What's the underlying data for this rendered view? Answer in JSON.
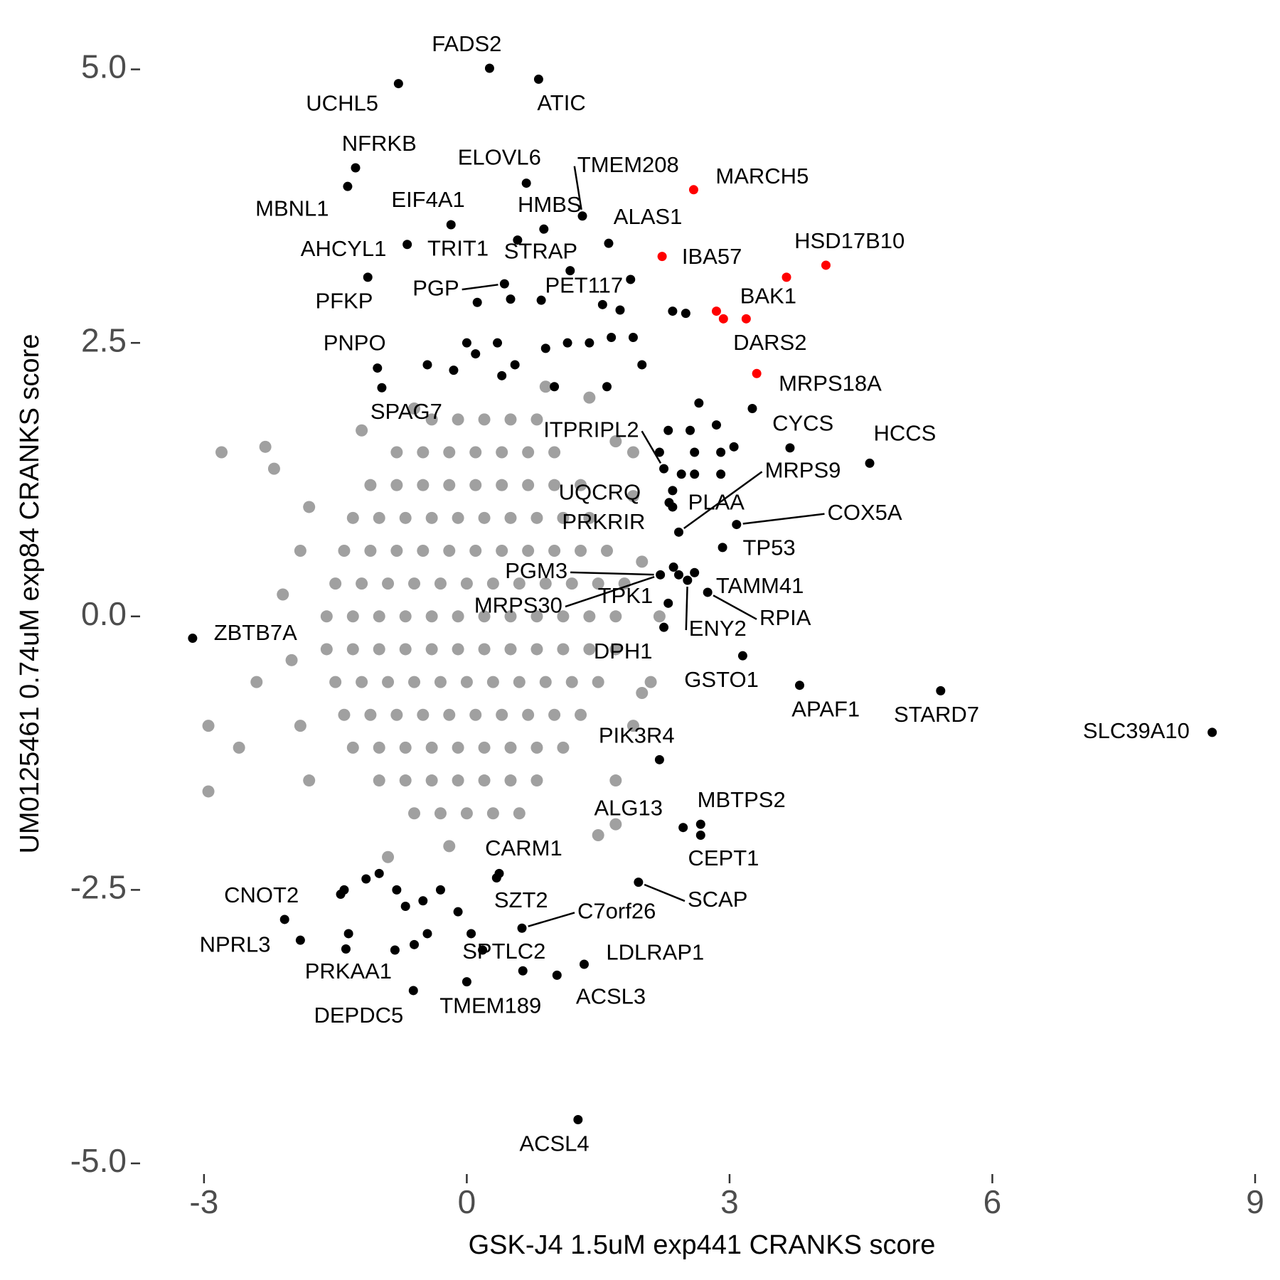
{
  "chart_data": {
    "type": "scatter",
    "xlabel": "GSK-J4 1.5uM exp441 CRANKS score",
    "ylabel": "UM0125461 0.74uM exp84 CRANKS score",
    "xlim": [
      -3.5,
      9.0
    ],
    "ylim": [
      -5.1,
      5.2
    ],
    "xticks": [
      -3,
      0,
      3,
      6,
      9
    ],
    "yticks": [
      {
        "value": -5,
        "label": "-5.0"
      },
      {
        "value": -2.5,
        "label": "-2.5"
      },
      {
        "value": 0,
        "label": "0.0"
      },
      {
        "value": 2.5,
        "label": "2.5"
      },
      {
        "value": 5,
        "label": "5.0"
      }
    ],
    "grid": false,
    "series": [
      {
        "color": "#a0a0a0",
        "x": [
          -0.4,
          -0.1,
          0.2,
          0.5,
          0.8,
          -0.8,
          -0.5,
          -0.2,
          0.1,
          0.4,
          0.7,
          1.0,
          -1.1,
          -0.8,
          -0.5,
          -0.2,
          0.1,
          0.4,
          0.7,
          1.0,
          1.3,
          -1.3,
          -1.0,
          -0.7,
          -0.4,
          -0.1,
          0.2,
          0.5,
          0.8,
          1.1,
          1.4,
          -1.4,
          -1.1,
          -0.8,
          -0.5,
          -0.2,
          0.1,
          0.4,
          0.7,
          1.0,
          1.3,
          1.6,
          -1.5,
          -1.2,
          -0.9,
          -0.6,
          -0.3,
          0,
          0.3,
          0.6,
          0.9,
          1.2,
          1.5,
          1.8,
          -1.6,
          -1.3,
          -1.0,
          -0.7,
          -0.4,
          -0.1,
          0.2,
          0.5,
          0.8,
          1.1,
          1.4,
          1.7,
          -1.6,
          -1.3,
          -1.0,
          -0.7,
          -0.4,
          -0.1,
          0.2,
          0.5,
          0.8,
          1.1,
          1.4,
          1.7,
          -1.5,
          -1.2,
          -0.9,
          -0.6,
          -0.3,
          0,
          0.3,
          0.6,
          0.9,
          1.2,
          1.5,
          -1.4,
          -1.1,
          -0.8,
          -0.5,
          -0.2,
          0.1,
          0.4,
          0.7,
          1.0,
          1.3,
          -1.3,
          -1.0,
          -0.7,
          -0.4,
          -0.1,
          0.2,
          0.5,
          0.8,
          1.1,
          -1.0,
          -0.7,
          -0.4,
          -0.1,
          0.2,
          0.5,
          0.8,
          -0.6,
          -0.3,
          0,
          0.3,
          0.6,
          -2.8,
          -2.3,
          -2.2,
          -2.95,
          -2.95,
          -2.4,
          -2.6,
          -1.9,
          -2.1,
          -2.0,
          -1.9,
          -1.8,
          -1.2,
          -0.9,
          -0.2,
          1.7,
          1.7,
          1.9,
          2.1,
          2.2,
          2.0,
          1.9,
          1.7,
          1.4,
          0.9,
          -0.6,
          -1.8,
          1.5,
          2.0,
          1.9
        ],
        "y": [
          1.8,
          1.8,
          1.8,
          1.8,
          1.8,
          1.5,
          1.5,
          1.5,
          1.5,
          1.5,
          1.5,
          1.5,
          1.2,
          1.2,
          1.2,
          1.2,
          1.2,
          1.2,
          1.2,
          1.2,
          1.2,
          0.9,
          0.9,
          0.9,
          0.9,
          0.9,
          0.9,
          0.9,
          0.9,
          0.9,
          0.9,
          0.6,
          0.6,
          0.6,
          0.6,
          0.6,
          0.6,
          0.6,
          0.6,
          0.6,
          0.6,
          0.6,
          0.3,
          0.3,
          0.3,
          0.3,
          0.3,
          0.3,
          0.3,
          0.3,
          0.3,
          0.3,
          0.3,
          0.3,
          0,
          0,
          0,
          0,
          0,
          0,
          0,
          0,
          0,
          0,
          0,
          0,
          -0.3,
          -0.3,
          -0.3,
          -0.3,
          -0.3,
          -0.3,
          -0.3,
          -0.3,
          -0.3,
          -0.3,
          -0.3,
          -0.3,
          -0.6,
          -0.6,
          -0.6,
          -0.6,
          -0.6,
          -0.6,
          -0.6,
          -0.6,
          -0.6,
          -0.6,
          -0.6,
          -0.9,
          -0.9,
          -0.9,
          -0.9,
          -0.9,
          -0.9,
          -0.9,
          -0.9,
          -0.9,
          -0.9,
          -1.2,
          -1.2,
          -1.2,
          -1.2,
          -1.2,
          -1.2,
          -1.2,
          -1.2,
          -1.2,
          -1.5,
          -1.5,
          -1.5,
          -1.5,
          -1.5,
          -1.5,
          -1.5,
          -1.8,
          -1.8,
          -1.8,
          -1.8,
          -1.8,
          1.5,
          1.55,
          1.35,
          -1.0,
          -1.6,
          -0.6,
          -1.2,
          0.6,
          0.2,
          -0.4,
          -1.0,
          1.0,
          1.7,
          -2.2,
          -2.1,
          -1.9,
          -1.5,
          -1.0,
          -0.6,
          0.0,
          0.5,
          1.1,
          1.6,
          2.0,
          2.1,
          1.9,
          -1.5,
          -2.0,
          -0.7,
          1.5
        ]
      },
      {
        "color": "#000000",
        "x": [
          0.26,
          -0.78,
          0.82,
          -1.27,
          -1.36,
          0.68,
          1.32,
          0.88,
          -0.18,
          1.62,
          -0.68,
          0.58,
          1.18,
          -1.13,
          0.43,
          1.87,
          -1.02,
          -0.97,
          3.26,
          4.6,
          3.69,
          2.25,
          2.42,
          2.31,
          3.08,
          2.92,
          2.21,
          2.75,
          2.36,
          -3.13,
          2.25,
          3.15,
          3.8,
          5.41,
          8.51,
          2.2,
          2.47,
          2.67,
          2.67,
          1.96,
          0.37,
          0.34,
          -1.44,
          0.63,
          -2.08,
          -1.9,
          -1.38,
          0.64,
          1.34,
          1.03,
          0.0,
          -0.61,
          1.27,
          0,
          0.1,
          0.35,
          0.55,
          0.9,
          1.15,
          1.4,
          1.65,
          1.9,
          2.35,
          2.5,
          0.85,
          0.12,
          0.5,
          1.55,
          1.75,
          -0.45,
          -0.15,
          0.4,
          1.0,
          1.6,
          2.0,
          2.65,
          2.55,
          2.85,
          2.6,
          2.9,
          3.05,
          2.3,
          2.6,
          2.9,
          2.2,
          -1.15,
          -1.0,
          -0.8,
          -0.7,
          -0.5,
          -0.45,
          -0.3,
          -0.6,
          -0.1,
          0.05,
          0.18,
          -1.35,
          -0.82,
          -1.4,
          2.42,
          2.52,
          2.6,
          2.3,
          2.35,
          2.45,
          2.35
        ],
        "y": [
          5.01,
          4.87,
          4.91,
          4.1,
          3.93,
          3.96,
          3.66,
          3.54,
          3.58,
          3.41,
          3.4,
          3.44,
          3.16,
          3.1,
          3.04,
          3.08,
          2.27,
          2.09,
          1.9,
          1.4,
          1.54,
          1.35,
          0.77,
          1.04,
          0.84,
          0.63,
          0.38,
          0.22,
          0.45,
          -0.2,
          -0.1,
          -0.36,
          -0.63,
          -0.68,
          -1.06,
          -1.31,
          -1.93,
          -1.9,
          -2.0,
          -2.43,
          -2.35,
          -2.39,
          -2.54,
          -2.85,
          -2.77,
          -2.96,
          -3.04,
          -3.24,
          -3.18,
          -3.28,
          -3.34,
          -3.42,
          -4.6,
          2.5,
          2.4,
          2.5,
          2.3,
          2.45,
          2.5,
          2.5,
          2.55,
          2.55,
          2.79,
          2.77,
          2.89,
          2.87,
          2.9,
          2.85,
          2.8,
          2.3,
          2.25,
          2.2,
          2.1,
          2.1,
          2.3,
          1.95,
          1.7,
          1.75,
          1.5,
          1.5,
          1.55,
          1.7,
          1.3,
          1.3,
          1.5,
          -2.4,
          -2.35,
          -2.5,
          -2.65,
          -2.6,
          -2.9,
          -2.5,
          -3.0,
          -2.7,
          -2.9,
          -3.05,
          -2.9,
          -3.05,
          -2.5,
          0.38,
          0.33,
          0.4,
          0.12,
          1.15,
          1.3,
          1.0
        ]
      },
      {
        "color": "#ff0000",
        "x": [
          2.59,
          2.23,
          4.1,
          3.65,
          2.85,
          2.93,
          3.19,
          3.31
        ],
        "y": [
          3.9,
          3.29,
          3.21,
          3.1,
          2.79,
          2.72,
          2.72,
          2.22
        ]
      }
    ],
    "annotations": [
      {
        "text": "FADS2",
        "x": 0.26,
        "y": 5.01
      },
      {
        "text": "UCHL5",
        "x": -0.78,
        "y": 4.87
      },
      {
        "text": "ATIC",
        "x": 0.82,
        "y": 4.91
      },
      {
        "text": "NFRKB",
        "x": -1.27,
        "y": 4.1
      },
      {
        "text": "MBNL1",
        "x": -1.36,
        "y": 3.93
      },
      {
        "text": "ELOVL6",
        "x": 0.68,
        "y": 3.96
      },
      {
        "text": "TMEM208",
        "x": 1.32,
        "y": 3.66
      },
      {
        "text": "HMBS",
        "x": 0.88,
        "y": 3.54
      },
      {
        "text": "EIF4A1",
        "x": -0.18,
        "y": 3.58
      },
      {
        "text": "MARCH5",
        "x": 2.59,
        "y": 3.9
      },
      {
        "text": "ALAS1",
        "x": 1.62,
        "y": 3.41
      },
      {
        "text": "AHCYL1",
        "x": -0.68,
        "y": 3.4
      },
      {
        "text": "TRIT1",
        "x": 0.58,
        "y": 3.44
      },
      {
        "text": "STRAP",
        "x": 1.18,
        "y": 3.16
      },
      {
        "text": "IBA57",
        "x": 2.23,
        "y": 3.29
      },
      {
        "text": "HSD17B10",
        "x": 4.1,
        "y": 3.21
      },
      {
        "text": "PFKP",
        "x": -1.13,
        "y": 3.1
      },
      {
        "text": "PGP",
        "x": 0.43,
        "y": 3.04
      },
      {
        "text": "PET117",
        "x": 1.87,
        "y": 3.08
      },
      {
        "text": "BAK1",
        "x": 3.19,
        "y": 2.72
      },
      {
        "text": "DARS2",
        "x": 2.93,
        "y": 2.72
      },
      {
        "text": "PNPO",
        "x": -1.02,
        "y": 2.27
      },
      {
        "text": "MRPS18A",
        "x": 3.31,
        "y": 2.22
      },
      {
        "text": "SPAG7",
        "x": -0.97,
        "y": 2.09
      },
      {
        "text": "CYCS",
        "x": 3.26,
        "y": 1.9
      },
      {
        "text": "HCCS",
        "x": 4.6,
        "y": 1.4
      },
      {
        "text": "ITPRIPL2",
        "x": 2.25,
        "y": 1.35
      },
      {
        "text": "MRPS9",
        "x": 2.42,
        "y": 0.77
      },
      {
        "text": "UQCRQ",
        "x": 2.31,
        "y": 1.04
      },
      {
        "text": "PLAA",
        "x": 2.42,
        "y": 0.77
      },
      {
        "text": "COX5A",
        "x": 3.08,
        "y": 0.84
      },
      {
        "text": "TP53",
        "x": 2.92,
        "y": 0.63
      },
      {
        "text": "PRKRIR",
        "x": 2.42,
        "y": 0.77
      },
      {
        "text": "PGM3",
        "x": 2.21,
        "y": 0.38
      },
      {
        "text": "TAMM41",
        "x": 2.75,
        "y": 0.22
      },
      {
        "text": "TPK1",
        "x": 2.36,
        "y": 0.45
      },
      {
        "text": "MRPS30",
        "x": 2.21,
        "y": 0.38
      },
      {
        "text": "ENY2",
        "x": 2.52,
        "y": 0.33
      },
      {
        "text": "RPIA",
        "x": 2.75,
        "y": 0.22
      },
      {
        "text": "ZBTB7A",
        "x": -3.13,
        "y": -0.2
      },
      {
        "text": "DPH1",
        "x": 2.25,
        "y": -0.1
      },
      {
        "text": "GSTO1",
        "x": 3.15,
        "y": -0.36
      },
      {
        "text": "APAF1",
        "x": 3.8,
        "y": -0.63
      },
      {
        "text": "STARD7",
        "x": 5.41,
        "y": -0.68
      },
      {
        "text": "SLC39A10",
        "x": 8.51,
        "y": -1.06
      },
      {
        "text": "PIK3R4",
        "x": 2.2,
        "y": -1.31
      },
      {
        "text": "ALG13",
        "x": 2.47,
        "y": -1.93
      },
      {
        "text": "MBTPS2",
        "x": 2.67,
        "y": -1.9
      },
      {
        "text": "CEPT1",
        "x": 2.67,
        "y": -2.0
      },
      {
        "text": "SCAP",
        "x": 1.96,
        "y": -2.43
      },
      {
        "text": "CARM1",
        "x": 0.37,
        "y": -2.35
      },
      {
        "text": "CNOT2",
        "x": -1.44,
        "y": -2.54
      },
      {
        "text": "SZT2",
        "x": 0.34,
        "y": -2.39
      },
      {
        "text": "C7orf26",
        "x": 0.63,
        "y": -2.85
      },
      {
        "text": "NPRL3",
        "x": -1.9,
        "y": -2.96
      },
      {
        "text": "PRKAA1",
        "x": -1.38,
        "y": -3.04
      },
      {
        "text": "SPTLC2",
        "x": 0.64,
        "y": -3.24
      },
      {
        "text": "LDLRAP1",
        "x": 1.34,
        "y": -3.18
      },
      {
        "text": "ACSL3",
        "x": 1.03,
        "y": -3.28
      },
      {
        "text": "TMEM189",
        "x": 0.0,
        "y": -3.34
      },
      {
        "text": "DEPDC5",
        "x": -0.61,
        "y": -3.42
      },
      {
        "text": "ACSL4",
        "x": 1.27,
        "y": -4.6
      }
    ]
  }
}
